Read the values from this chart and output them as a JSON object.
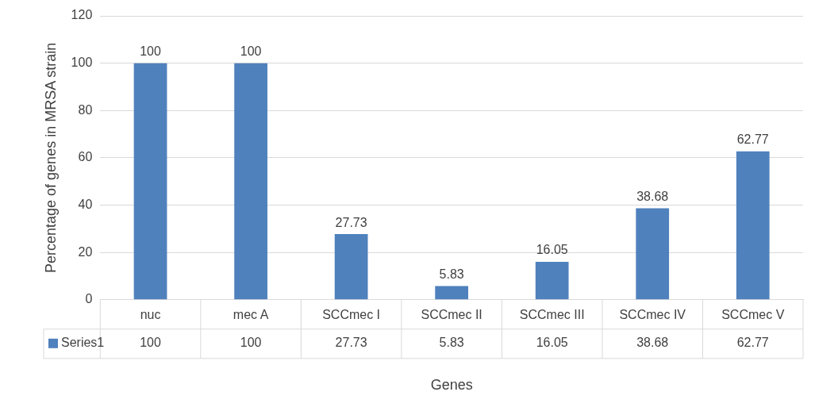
{
  "chart_data": {
    "type": "bar",
    "xlabel": "Genes",
    "ylabel": "Percentage of genes in MRSA strain",
    "categories": [
      "nuc",
      "mec A",
      "SCCmec I",
      "SCCmec II",
      "SCCmec III",
      "SCCmec IV",
      "SCCmec V"
    ],
    "series": [
      {
        "name": "Series1",
        "color": "#4f81bd",
        "values": [
          100,
          100,
          27.73,
          5.83,
          16.05,
          38.68,
          62.77
        ]
      }
    ],
    "annotations": [
      "100",
      "100",
      "27.73",
      "5.83",
      "16.05",
      "38.68",
      "62.77"
    ],
    "ylim": [
      0,
      120
    ],
    "yticks": [
      0,
      20,
      40,
      60,
      80,
      100,
      120
    ],
    "grid": "y",
    "data_labels": true,
    "legend": "bottom left"
  }
}
